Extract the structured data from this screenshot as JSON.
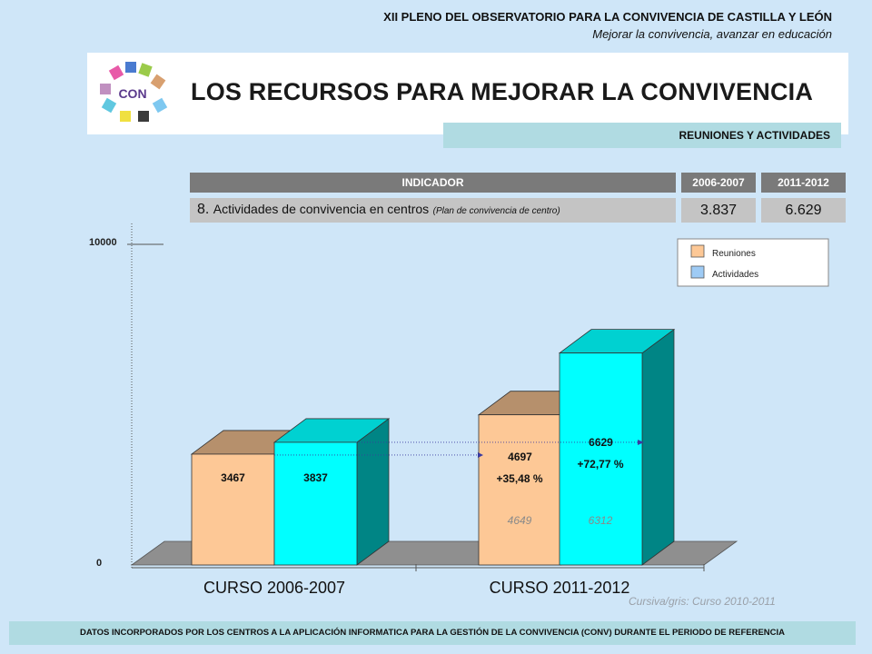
{
  "header": {
    "event": "XII PLENO DEL OBSERVATORIO PARA LA CONVIVENCIA DE CASTILLA Y LEÓN",
    "motto": "Mejorar la convivencia, avanzar en educación"
  },
  "logo": {
    "text": "CON"
  },
  "title": "LOS RECURSOS PARA MEJORAR LA CONVIVENCIA",
  "section": "REUNIONES Y ACTIVIDADES",
  "indicator_table": {
    "header_indicator": "INDICADOR",
    "header_year1": "2006-2007",
    "header_year2": "2011-2012",
    "number": "8.",
    "label": "Actividades de convivencia en centros",
    "sublabel": "(Plan de convivencia de centro)",
    "value_year1": "3.837",
    "value_year2": "6.629"
  },
  "legend": {
    "reuniones": "Reuniones",
    "actividades": "Actividades"
  },
  "chart_data": {
    "type": "bar",
    "categories": [
      "CURSO 2006-2007",
      "CURSO 2011-2012"
    ],
    "series": [
      {
        "name": "Reuniones",
        "values": [
          3467,
          4697
        ],
        "color": "#fdc896"
      },
      {
        "name": "Actividades",
        "values": [
          3837,
          6629
        ],
        "color": "#00ffff"
      }
    ],
    "ylim": [
      0,
      10000
    ],
    "ytick_labels": [
      "0",
      "10000"
    ],
    "growth_labels": [
      "+35,48 %",
      "+72,77 %"
    ],
    "previous_year_values": [
      "4649",
      "6312"
    ]
  },
  "note": "Cursiva/gris: Curso 2010-2011",
  "footer": "DATOS INCORPORADOS POR LOS CENTROS A LA APLICACIÓN INFORMATICA PARA LA GESTIÓN DE LA CONVIVENCIA (CONV) DURANTE EL PERIODO DE REFERENCIA",
  "colors": {
    "background": "#cfe6f8",
    "reuniones": "#fdc896",
    "actividades": "#00ffff",
    "header_cell": "#7a7a7a",
    "section_bar": "#b0dbe2"
  }
}
